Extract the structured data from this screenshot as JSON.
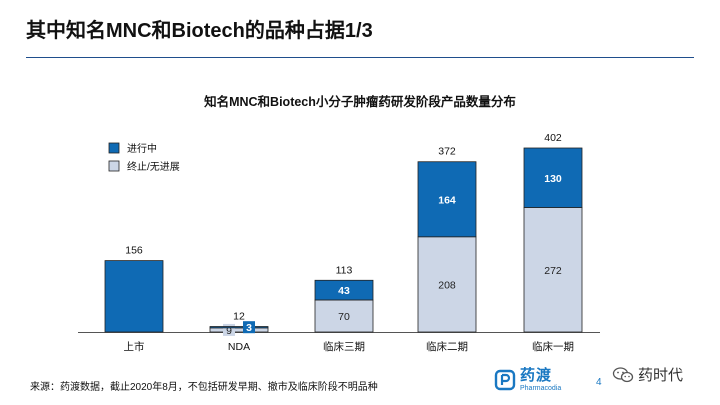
{
  "slide": {
    "title": "其中知名MNC和Biotech的品种占据1/3",
    "footnote": "来源：药渡数据，截止2020年8月，不包括研发早期、撤市及临床阶段不明品种",
    "page_number": "4",
    "brand_name": "药渡",
    "brand_sub": "Pharmacodia",
    "watermark": "药时代",
    "accent_color": "#1f4e8c"
  },
  "chart_data": {
    "type": "bar",
    "stacked": true,
    "title": "知名MNC和Biotech小分子肿瘤药研发阶段产品数量分布",
    "categories": [
      "上市",
      "NDA",
      "临床三期",
      "临床二期",
      "临床一期"
    ],
    "totals": [
      156,
      12,
      113,
      372,
      402
    ],
    "series": [
      {
        "name": "终止/无进展",
        "values": [
          0,
          9,
          70,
          208,
          272
        ],
        "color": "#ccd6e6"
      },
      {
        "name": "进行中",
        "values": [
          156,
          3,
          43,
          164,
          130
        ],
        "color": "#0f6ab4"
      }
    ],
    "segment_labels": [
      [
        "",
        "9",
        "70",
        "208",
        "272"
      ],
      [
        "",
        "3",
        "43",
        "164",
        "130"
      ]
    ],
    "legend_position": "top-left",
    "grid": false,
    "ylim": [
      0,
      402
    ]
  }
}
